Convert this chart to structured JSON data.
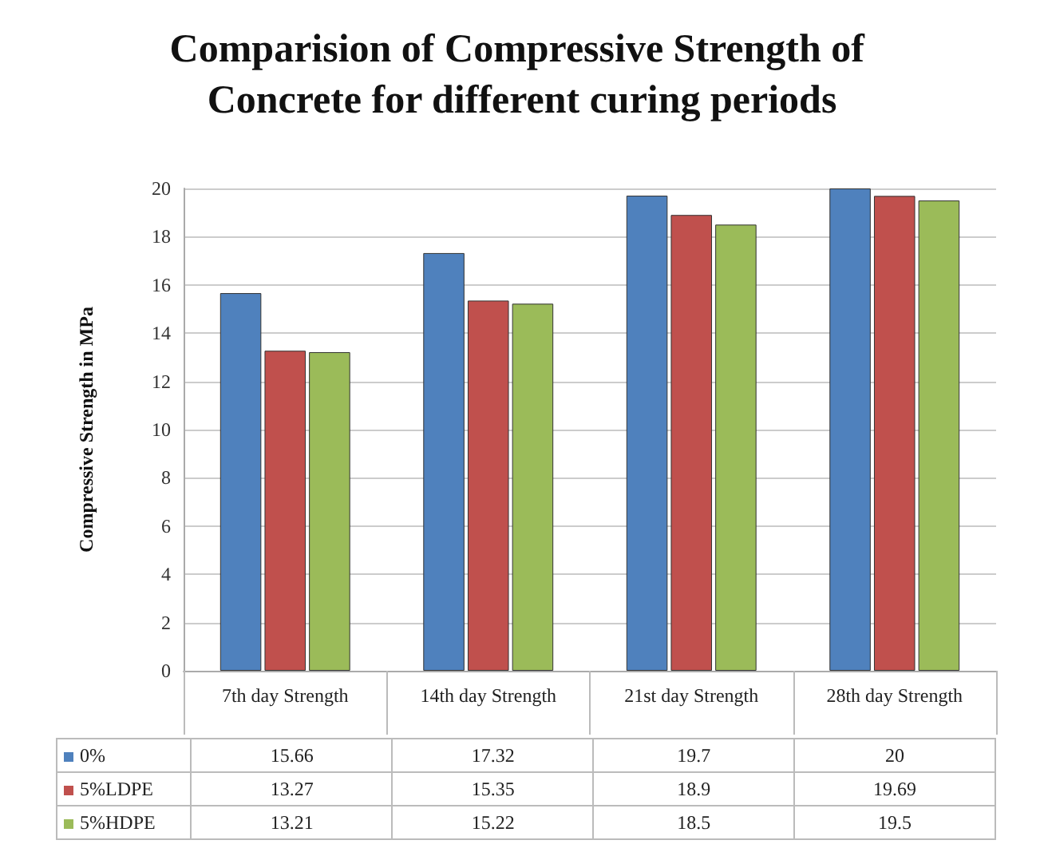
{
  "chart_data": {
    "type": "bar",
    "title": "Comparision of Compressive Strength of Concrete for different curing periods",
    "ylabel": "Compressive Strength in MPa",
    "categories": [
      "7th day Strength",
      "14th day Strength",
      "21st day Strength",
      "28th day Strength"
    ],
    "series": [
      {
        "name": "0%",
        "color": "#4f81bd",
        "values": [
          15.66,
          17.32,
          19.7,
          20
        ]
      },
      {
        "name": "5%LDPE",
        "color": "#c0504d",
        "values": [
          13.27,
          15.35,
          18.9,
          19.69
        ]
      },
      {
        "name": "5%HDPE",
        "color": "#9bbb59",
        "values": [
          13.21,
          15.22,
          18.5,
          19.5
        ]
      }
    ],
    "ylim": [
      0,
      20
    ],
    "yticks": [
      0,
      2,
      4,
      6,
      8,
      10,
      12,
      14,
      16,
      18,
      20
    ],
    "grid": "y",
    "legend": "bottom",
    "data_labels": true
  }
}
